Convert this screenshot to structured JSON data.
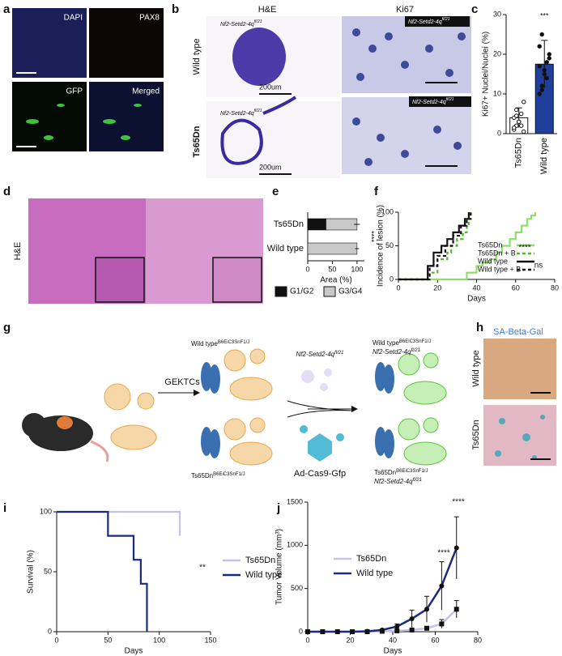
{
  "panel_labels": [
    "a",
    "b",
    "c",
    "d",
    "e",
    "f",
    "g",
    "h",
    "i",
    "j"
  ],
  "panel_a": {
    "channels": [
      "DAPI",
      "PAX8",
      "GFP",
      "Merged"
    ]
  },
  "panel_b": {
    "headers": [
      "H&E",
      "Ki67"
    ],
    "rows": [
      "Wild type",
      "Ts65Dn"
    ],
    "scale_bars": [
      "200um",
      "200um"
    ],
    "genotype_labels": [
      {
        "text": "Nf2-Setd2-4q",
        "sup": "fl/21"
      },
      {
        "text": "Nf2-Setd2-4q",
        "sup": "fl/21"
      },
      {
        "text": "Nf2-Setd2-4q",
        "sup": "fl/21"
      },
      {
        "text": "Nf2-Setd2-4q",
        "sup": "fl/21"
      }
    ]
  },
  "panel_d": {
    "stain": "H&E"
  },
  "panel_g": {
    "step": "GEKTCs",
    "host_top": {
      "text": "Wild type",
      "sup": "B6EiC3SnF1/J"
    },
    "host_bottom": {
      "text": "Ts65Dn",
      "sup": "B6EiC3SnF1/J"
    },
    "allele": {
      "text": "Nf2-Setd2-4q",
      "sup": "fl/21"
    },
    "virus": "Ad-Cas9-Gfp",
    "result_top": [
      {
        "text": "Wild type",
        "sup": "B6EiC3SnF1/J"
      },
      {
        "text": "Nf2-Setd2-4q",
        "sup": "fl/21"
      }
    ],
    "result_bottom": [
      {
        "text": "Ts65Dn",
        "sup": "B6EiC3SnF1/J"
      },
      {
        "text": "Nf2-Setd2-4q",
        "sup": "fl/21"
      }
    ]
  },
  "panel_h": {
    "title": "SA-Beta-Gal",
    "rows": [
      "Wild type",
      "Ts65Dn"
    ]
  },
  "chart_data": [
    {
      "type": "bar",
      "categories": [
        "Ts65Dn",
        "Wild type"
      ],
      "values": [
        4,
        17.5
      ],
      "errors": [
        2.5,
        6
      ],
      "points": [
        [
          1,
          2,
          3,
          5,
          0.5,
          4,
          6,
          3,
          2,
          8,
          1.5,
          4.5
        ],
        [
          10,
          12,
          15,
          18,
          20,
          22,
          25,
          16,
          14,
          19,
          17,
          11
        ]
      ],
      "colors": [
        "#ffffff",
        "#1f3f9a"
      ],
      "ylabel": "Ki67+ Nuclei/Nuclei (%)",
      "ylim": [
        0,
        30
      ],
      "yticks": [
        0,
        10,
        20,
        30
      ],
      "annotation": "***"
    },
    {
      "type": "barh",
      "categories": [
        "Ts65Dn",
        "Wild type"
      ],
      "series": [
        {
          "name": "G1/G2",
          "color": "#111111",
          "values": [
            37,
            0
          ],
          "errors": [
            8,
            0
          ]
        },
        {
          "name": "G3/G4",
          "color": "#c8c8c8",
          "values": [
            63,
            100
          ],
          "errors": [
            6,
            4
          ]
        }
      ],
      "xlabel": "Area (%)",
      "xlim": [
        0,
        115
      ],
      "xticks": [
        0,
        50,
        100
      ],
      "annotation": "****"
    },
    {
      "type": "step",
      "xlabel": "Days",
      "ylabel": "Incidence of lesion (%)",
      "xlim": [
        0,
        80
      ],
      "xticks": [
        0,
        20,
        40,
        60,
        80
      ],
      "ylim": [
        0,
        100
      ],
      "yticks": [
        0,
        50,
        100
      ],
      "series": [
        {
          "name": "Ts65Dn",
          "color": "#8fde6a",
          "dashed": false,
          "x": [
            0,
            35,
            40,
            43,
            47,
            50,
            53,
            57,
            60,
            63,
            66,
            68,
            70
          ],
          "values": [
            0,
            10,
            20,
            25,
            30,
            40,
            50,
            60,
            70,
            80,
            90,
            95,
            100
          ]
        },
        {
          "name": "Ts65Dn + B",
          "color": "#4cba2d",
          "dashed": true,
          "x": [
            0,
            15,
            20,
            25,
            27,
            30,
            33,
            35,
            36,
            37
          ],
          "values": [
            0,
            10,
            30,
            40,
            50,
            60,
            70,
            80,
            90,
            100
          ]
        },
        {
          "name": "Wild type",
          "color": "#111111",
          "dashed": false,
          "x": [
            0,
            15,
            18,
            22,
            25,
            28,
            31,
            34,
            36
          ],
          "values": [
            0,
            20,
            40,
            50,
            60,
            70,
            80,
            90,
            100
          ]
        },
        {
          "name": "Wild type + B",
          "color": "#111111",
          "dashed": true,
          "x": [
            0,
            16,
            20,
            24,
            28,
            32,
            35,
            37
          ],
          "values": [
            0,
            20,
            35,
            50,
            65,
            80,
            90,
            100
          ]
        }
      ],
      "annotations": [
        "****",
        "ns"
      ]
    },
    {
      "type": "step",
      "xlabel": "Days",
      "ylabel": "Survival (%)",
      "xlim": [
        0,
        150
      ],
      "xticks": [
        0,
        50,
        100,
        150
      ],
      "ylim": [
        0,
        100
      ],
      "yticks": [
        0,
        50,
        100
      ],
      "series": [
        {
          "name": "Ts65Dn",
          "color": "#c8c2ea",
          "dashed": false,
          "x": [
            0,
            105,
            120
          ],
          "values": [
            100,
            100,
            80
          ]
        },
        {
          "name": "Wild type",
          "color": "#1b2a7a",
          "dashed": false,
          "x": [
            0,
            50,
            75,
            82,
            88
          ],
          "values": [
            100,
            80,
            60,
            40,
            0
          ]
        }
      ],
      "annotations": [
        "**"
      ]
    },
    {
      "type": "line",
      "xlabel": "Days",
      "ylabel": "Tumor Volume (mm³)",
      "xlim": [
        0,
        80
      ],
      "xticks": [
        0,
        20,
        40,
        60,
        80
      ],
      "ylim": [
        0,
        1500
      ],
      "yticks": [
        0,
        500,
        1000,
        1500
      ],
      "x": [
        0,
        7,
        14,
        21,
        28,
        35,
        42,
        49,
        56,
        63,
        70
      ],
      "series": [
        {
          "name": "Ts65Dn",
          "color": "#c8c2ea",
          "marker": "square",
          "values": [
            0,
            0,
            0,
            0,
            0,
            5,
            10,
            20,
            40,
            90,
            260
          ],
          "errors": [
            0,
            0,
            0,
            0,
            0,
            5,
            5,
            10,
            20,
            50,
            100
          ]
        },
        {
          "name": "Wild type",
          "color": "#1b2a7a",
          "marker": "circle",
          "values": [
            0,
            0,
            0,
            0,
            5,
            20,
            60,
            150,
            260,
            530,
            970
          ],
          "errors": [
            0,
            0,
            0,
            0,
            5,
            10,
            30,
            100,
            150,
            280,
            360
          ]
        }
      ],
      "annotations": [
        "****",
        "****"
      ]
    }
  ]
}
